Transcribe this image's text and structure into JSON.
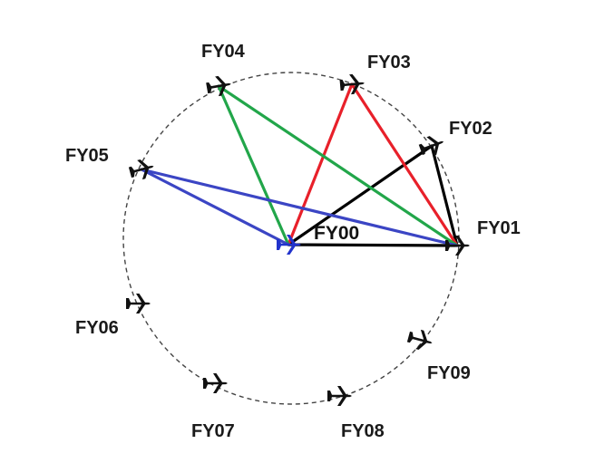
{
  "nodes": [
    {
      "id": "FY00",
      "label": "FY00",
      "role": "leader"
    },
    {
      "id": "FY01",
      "label": "FY01"
    },
    {
      "id": "FY02",
      "label": "FY02"
    },
    {
      "id": "FY03",
      "label": "FY03"
    },
    {
      "id": "FY04",
      "label": "FY04"
    },
    {
      "id": "FY05",
      "label": "FY05"
    },
    {
      "id": "FY06",
      "label": "FY06"
    },
    {
      "id": "FY07",
      "label": "FY07"
    },
    {
      "id": "FY08",
      "label": "FY08"
    },
    {
      "id": "FY09",
      "label": "FY09"
    }
  ],
  "links": [
    {
      "color": "#000000",
      "path": [
        "FY00",
        "FY02",
        "FY01",
        "FY00"
      ]
    },
    {
      "color": "#e8202a",
      "path": [
        "FY00",
        "FY03",
        "FY01"
      ]
    },
    {
      "color": "#22a64a",
      "path": [
        "FY00",
        "FY04",
        "FY01"
      ]
    },
    {
      "color": "#3b45c4",
      "path": [
        "FY00",
        "FY05",
        "FY01"
      ]
    }
  ],
  "colors": {
    "formation_circle": "#444444",
    "aircraft": "#111111",
    "leader_aircraft": "#2233cc"
  },
  "icons": {
    "aircraft": "airplane-icon",
    "leader": "leader-airplane-icon"
  }
}
